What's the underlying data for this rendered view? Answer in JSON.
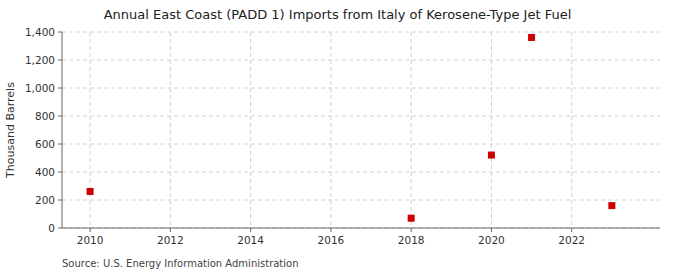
{
  "chart_data": {
    "type": "scatter",
    "title": "Annual East Coast (PADD 1) Imports from Italy of Kerosene-Type Jet Fuel",
    "y_label": "Thousand Barrels",
    "annotations": [
      "Source: U.S. Energy Information Administration"
    ],
    "x": [
      2010,
      2018,
      2020,
      2021,
      2023
    ],
    "values": [
      261,
      70,
      521,
      1361,
      160
    ],
    "color": "#cc0000",
    "marker": "square",
    "xlim": [
      2009.3,
      2024.2
    ],
    "ylim": [
      0,
      1400
    ],
    "xticks": [
      2010,
      2012,
      2014,
      2016,
      2018,
      2020,
      2022
    ],
    "yticks": [
      0,
      200,
      400,
      600,
      800,
      {
        "value": 1000,
        "label": "1,000"
      },
      {
        "value": 1200,
        "label": "1,200"
      },
      {
        "value": 1400,
        "label": "1,400"
      }
    ],
    "grid": true
  }
}
